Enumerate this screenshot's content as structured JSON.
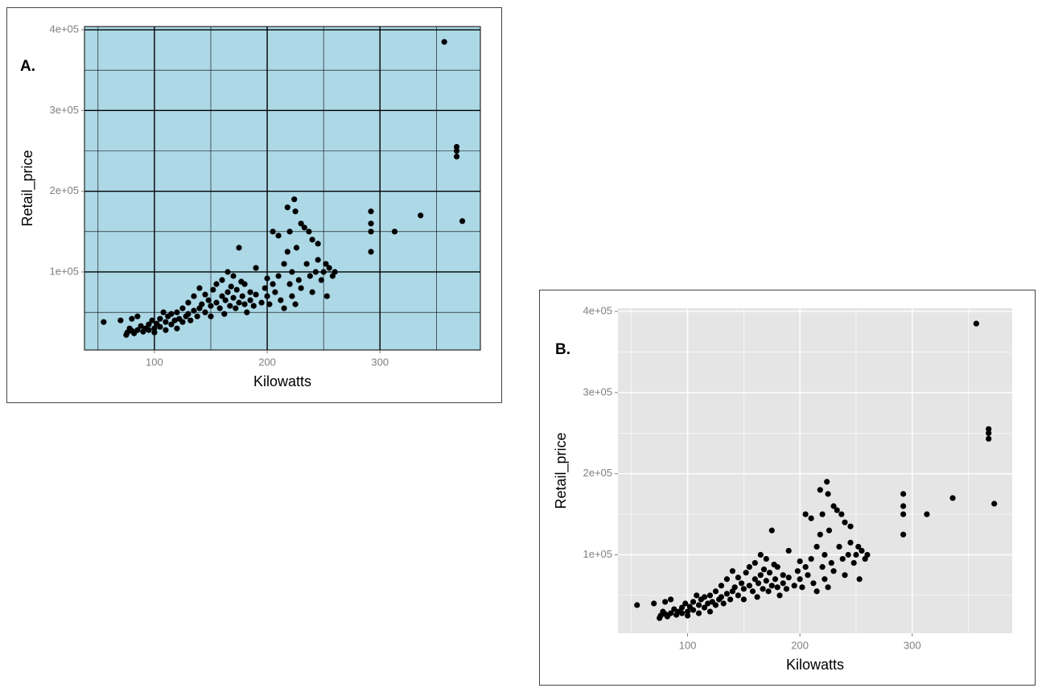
{
  "chart_data": [
    {
      "type": "scatter",
      "panel_label": "A.",
      "x_label": "Kilowatts",
      "y_label": "Retail_price",
      "panel_color": "#add8e6",
      "grid_color": "#000000",
      "point_color": "#000000",
      "xlim": [
        38,
        389
      ],
      "ylim": [
        3300,
        404000
      ],
      "xticks": [
        100,
        200,
        300
      ],
      "xminor": [
        50,
        150,
        250,
        350
      ],
      "yticks": [
        {
          "value": 100000,
          "label": "1e+05"
        },
        {
          "value": 200000,
          "label": "2e+05"
        },
        {
          "value": 300000,
          "label": "3e+05"
        },
        {
          "value": 400000,
          "label": "4e+05"
        }
      ],
      "yminor": [
        50000,
        150000,
        250000,
        350000
      ],
      "x": [
        55,
        70,
        75,
        76,
        78,
        80,
        80,
        82,
        85,
        85,
        88,
        90,
        92,
        95,
        95,
        98,
        100,
        100,
        102,
        105,
        105,
        108,
        110,
        110,
        112,
        115,
        115,
        118,
        120,
        120,
        122,
        125,
        125,
        128,
        130,
        130,
        132,
        135,
        135,
        138,
        140,
        140,
        142,
        145,
        145,
        148,
        150,
        150,
        152,
        155,
        155,
        158,
        160,
        160,
        162,
        163,
        165,
        165,
        167,
        168,
        170,
        170,
        172,
        173,
        175,
        175,
        177,
        178,
        180,
        180,
        182,
        185,
        185,
        188,
        190,
        190,
        195,
        198,
        200,
        200,
        202,
        205,
        205,
        207,
        210,
        210,
        212,
        215,
        215,
        218,
        218,
        220,
        220,
        222,
        222,
        224,
        225,
        225,
        226,
        228,
        230,
        230,
        233,
        235,
        237,
        238,
        240,
        240,
        243,
        245,
        245,
        248,
        250,
        252,
        253,
        255,
        258,
        260,
        292,
        292,
        292,
        292,
        313,
        336,
        357,
        368,
        368,
        368,
        373
      ],
      "y": [
        38000,
        40000,
        22000,
        25000,
        30000,
        27000,
        42000,
        24000,
        28000,
        45000,
        33000,
        26000,
        30000,
        35000,
        28000,
        40000,
        30000,
        25000,
        36000,
        42000,
        32000,
        50000,
        38000,
        28000,
        45000,
        35000,
        48000,
        40000,
        30000,
        50000,
        42000,
        38000,
        55000,
        45000,
        48000,
        62000,
        40000,
        52000,
        70000,
        45000,
        55000,
        80000,
        60000,
        50000,
        72000,
        65000,
        58000,
        45000,
        78000,
        62000,
        85000,
        55000,
        70000,
        90000,
        48000,
        65000,
        75000,
        100000,
        58000,
        82000,
        68000,
        95000,
        55000,
        78000,
        62000,
        130000,
        88000,
        70000,
        60000,
        85000,
        50000,
        75000,
        65000,
        58000,
        72000,
        105000,
        62000,
        80000,
        70000,
        92000,
        60000,
        150000,
        85000,
        75000,
        145000,
        95000,
        65000,
        110000,
        55000,
        180000,
        125000,
        85000,
        150000,
        100000,
        70000,
        190000,
        175000,
        60000,
        130000,
        90000,
        80000,
        160000,
        155000,
        110000,
        150000,
        95000,
        140000,
        75000,
        100000,
        135000,
        115000,
        90000,
        100000,
        110000,
        70000,
        105000,
        95000,
        100000,
        175000,
        160000,
        150000,
        125000,
        150000,
        170000,
        385000,
        255000,
        250000,
        243000,
        163000
      ]
    },
    {
      "type": "scatter",
      "panel_label": "B.",
      "x_label": "Kilowatts",
      "y_label": "Retail_price",
      "panel_color": "#e5e5e5",
      "grid_color": "#ffffff",
      "point_color": "#000000",
      "xlim": [
        38,
        389
      ],
      "ylim": [
        3300,
        404000
      ],
      "xticks": [
        100,
        200,
        300
      ],
      "xminor": [
        50,
        150,
        250,
        350
      ],
      "yticks": [
        {
          "value": 100000,
          "label": "1e+05"
        },
        {
          "value": 200000,
          "label": "2e+05"
        },
        {
          "value": 300000,
          "label": "3e+05"
        },
        {
          "value": 400000,
          "label": "4e+05"
        }
      ],
      "yminor": [
        50000,
        150000,
        250000,
        350000
      ],
      "x": [
        55,
        70,
        75,
        76,
        78,
        80,
        80,
        82,
        85,
        85,
        88,
        90,
        92,
        95,
        95,
        98,
        100,
        100,
        102,
        105,
        105,
        108,
        110,
        110,
        112,
        115,
        115,
        118,
        120,
        120,
        122,
        125,
        125,
        128,
        130,
        130,
        132,
        135,
        135,
        138,
        140,
        140,
        142,
        145,
        145,
        148,
        150,
        150,
        152,
        155,
        155,
        158,
        160,
        160,
        162,
        163,
        165,
        165,
        167,
        168,
        170,
        170,
        172,
        173,
        175,
        175,
        177,
        178,
        180,
        180,
        182,
        185,
        185,
        188,
        190,
        190,
        195,
        198,
        200,
        200,
        202,
        205,
        205,
        207,
        210,
        210,
        212,
        215,
        215,
        218,
        218,
        220,
        220,
        222,
        222,
        224,
        225,
        225,
        226,
        228,
        230,
        230,
        233,
        235,
        237,
        238,
        240,
        240,
        243,
        245,
        245,
        248,
        250,
        252,
        253,
        255,
        258,
        260,
        292,
        292,
        292,
        292,
        313,
        336,
        357,
        368,
        368,
        368,
        373
      ],
      "y": [
        38000,
        40000,
        22000,
        25000,
        30000,
        27000,
        42000,
        24000,
        28000,
        45000,
        33000,
        26000,
        30000,
        35000,
        28000,
        40000,
        30000,
        25000,
        36000,
        42000,
        32000,
        50000,
        38000,
        28000,
        45000,
        35000,
        48000,
        40000,
        30000,
        50000,
        42000,
        38000,
        55000,
        45000,
        48000,
        62000,
        40000,
        52000,
        70000,
        45000,
        55000,
        80000,
        60000,
        50000,
        72000,
        65000,
        58000,
        45000,
        78000,
        62000,
        85000,
        55000,
        70000,
        90000,
        48000,
        65000,
        75000,
        100000,
        58000,
        82000,
        68000,
        95000,
        55000,
        78000,
        62000,
        130000,
        88000,
        70000,
        60000,
        85000,
        50000,
        75000,
        65000,
        58000,
        72000,
        105000,
        62000,
        80000,
        70000,
        92000,
        60000,
        150000,
        85000,
        75000,
        145000,
        95000,
        65000,
        110000,
        55000,
        180000,
        125000,
        85000,
        150000,
        100000,
        70000,
        190000,
        175000,
        60000,
        130000,
        90000,
        80000,
        160000,
        155000,
        110000,
        150000,
        95000,
        140000,
        75000,
        100000,
        135000,
        115000,
        90000,
        100000,
        110000,
        70000,
        105000,
        95000,
        100000,
        175000,
        160000,
        150000,
        125000,
        150000,
        170000,
        385000,
        255000,
        250000,
        243000,
        163000
      ]
    }
  ]
}
